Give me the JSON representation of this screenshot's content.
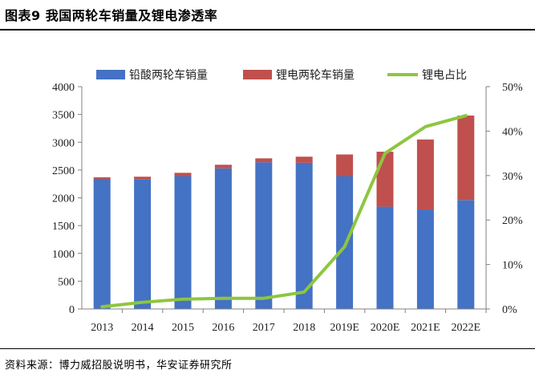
{
  "figure": {
    "title": "图表9 我国两轮车销量及锂电渗透率",
    "source": "资料来源：博力威招股说明书，华安证券研究所"
  },
  "colors": {
    "lead_acid": "#4472c4",
    "lithium": "#c0504d",
    "penetration": "#8dc63f",
    "axis": "#808080"
  },
  "chart_data": {
    "type": "bar",
    "stacked": true,
    "categories": [
      "2013",
      "2014",
      "2015",
      "2016",
      "2017",
      "2018",
      "2019E",
      "2020E",
      "2021E",
      "2022E"
    ],
    "series": [
      {
        "name": "铅酸两轮车销量",
        "type": "bar",
        "axis": "left",
        "values": [
          2340,
          2330,
          2390,
          2530,
          2640,
          2630,
          2390,
          1840,
          1790,
          1960
        ]
      },
      {
        "name": "锂电两轮车销量",
        "type": "bar",
        "axis": "left",
        "values": [
          30,
          50,
          60,
          65,
          70,
          110,
          390,
          990,
          1260,
          1520
        ]
      },
      {
        "name": "锂电占比",
        "type": "line",
        "axis": "right",
        "values": [
          0.5,
          1.5,
          2.2,
          2.4,
          2.4,
          3.8,
          14,
          35,
          41,
          43.5
        ]
      }
    ],
    "left_axis": {
      "min": 0,
      "max": 4000,
      "step": 500,
      "ticks": [
        "0",
        "500",
        "1000",
        "1500",
        "2000",
        "2500",
        "3000",
        "3500",
        "4000"
      ]
    },
    "right_axis": {
      "min": 0,
      "max": 50,
      "step": 10,
      "ticks": [
        "0%",
        "10%",
        "20%",
        "30%",
        "40%",
        "50%"
      ]
    },
    "legend_position": "top"
  }
}
